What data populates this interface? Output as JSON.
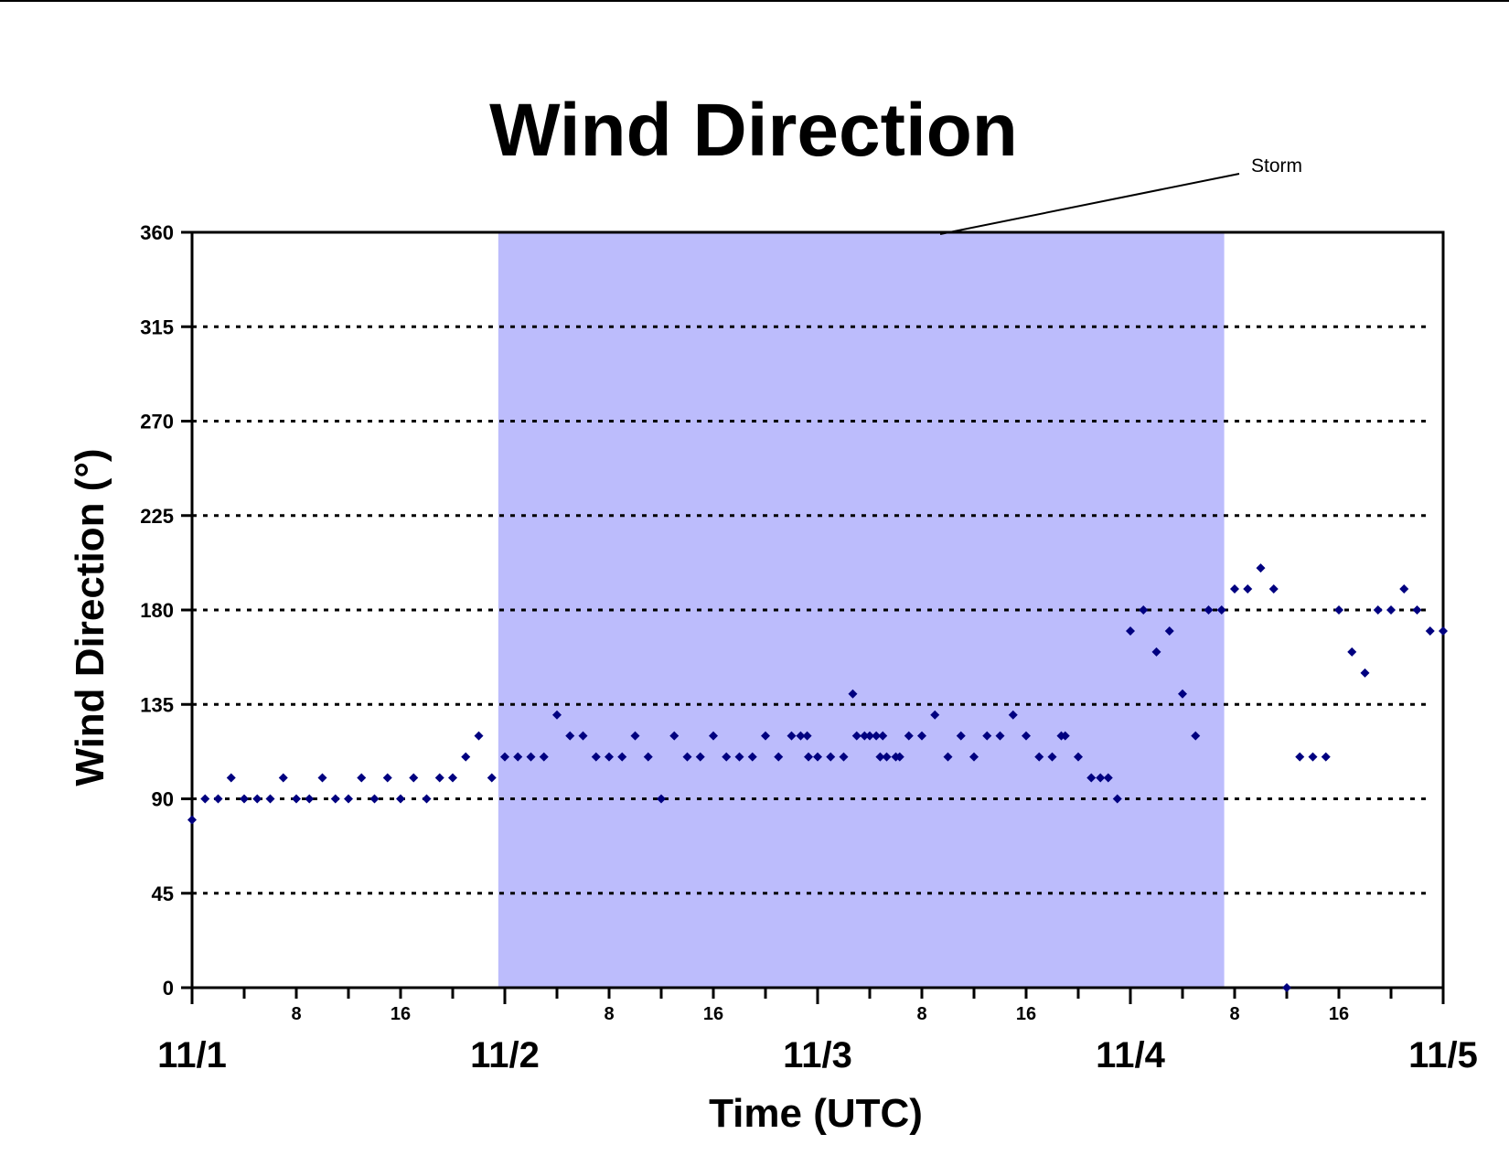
{
  "colors": {
    "shade": "#bcbcfc",
    "marker": "#000080",
    "axis": "#000000",
    "grid": "#000000"
  },
  "chart_data": {
    "type": "scatter",
    "title": "Wind Direction",
    "xlabel": "Time (UTC)",
    "ylabel": "Wind Direction (°)",
    "ylim": [
      0,
      360
    ],
    "yticks": [
      "0",
      "45",
      "90",
      "135",
      "180",
      "225",
      "270",
      "315",
      "360"
    ],
    "ytick_values": [
      0,
      45,
      90,
      135,
      180,
      225,
      270,
      315,
      360
    ],
    "xlim_hours": [
      0,
      96
    ],
    "day_labels": [
      {
        "hour": 0,
        "label": "11/1"
      },
      {
        "hour": 24,
        "label": "11/2"
      },
      {
        "hour": 48,
        "label": "11/3"
      },
      {
        "hour": 72,
        "label": "11/4"
      },
      {
        "hour": 96,
        "label": "11/5"
      }
    ],
    "hour_labels": [
      {
        "hour": 8,
        "label": "8"
      },
      {
        "hour": 16,
        "label": "16"
      },
      {
        "hour": 32,
        "label": "8"
      },
      {
        "hour": 40,
        "label": "16"
      },
      {
        "hour": 56,
        "label": "8"
      },
      {
        "hour": 64,
        "label": "16"
      },
      {
        "hour": 80,
        "label": "8"
      },
      {
        "hour": 88,
        "label": "16"
      }
    ],
    "grid": "horizontal dotted",
    "shaded_region": {
      "label": "Storm",
      "from_hour": 23.5,
      "to_hour": 79.2
    },
    "series": [
      {
        "points": [
          [
            0,
            80
          ],
          [
            1,
            90
          ],
          [
            2,
            90
          ],
          [
            3,
            100
          ],
          [
            4,
            90
          ],
          [
            5,
            90
          ],
          [
            6,
            90
          ],
          [
            7,
            100
          ],
          [
            8,
            90
          ],
          [
            9,
            90
          ],
          [
            10,
            100
          ],
          [
            11,
            90
          ],
          [
            12,
            90
          ],
          [
            13,
            100
          ],
          [
            14,
            90
          ],
          [
            15,
            100
          ],
          [
            16,
            90
          ],
          [
            17,
            100
          ],
          [
            18,
            90
          ],
          [
            19,
            100
          ],
          [
            20,
            100
          ],
          [
            21,
            110
          ],
          [
            22,
            120
          ],
          [
            23,
            100
          ],
          [
            24,
            110
          ],
          [
            25,
            110
          ],
          [
            26,
            110
          ],
          [
            27,
            110
          ],
          [
            28,
            130
          ],
          [
            29,
            120
          ],
          [
            30,
            120
          ],
          [
            31,
            110
          ],
          [
            32,
            110
          ],
          [
            33,
            110
          ],
          [
            34,
            120
          ],
          [
            35,
            110
          ],
          [
            36,
            90
          ],
          [
            37,
            120
          ],
          [
            38,
            110
          ],
          [
            39,
            110
          ],
          [
            40,
            120
          ],
          [
            41,
            110
          ],
          [
            42,
            110
          ],
          [
            43,
            110
          ],
          [
            44,
            120
          ],
          [
            45,
            110
          ],
          [
            46,
            120
          ],
          [
            46.7,
            120
          ],
          [
            47.2,
            120
          ],
          [
            47.3,
            110
          ],
          [
            48,
            110
          ],
          [
            49,
            110
          ],
          [
            50,
            110
          ],
          [
            50.7,
            140
          ],
          [
            51,
            120
          ],
          [
            51.6,
            120
          ],
          [
            52,
            120
          ],
          [
            52.5,
            120
          ],
          [
            52.8,
            110
          ],
          [
            53,
            120
          ],
          [
            53.3,
            110
          ],
          [
            54,
            110
          ],
          [
            54.3,
            110
          ],
          [
            55,
            120
          ],
          [
            56,
            120
          ],
          [
            57,
            130
          ],
          [
            58,
            110
          ],
          [
            59,
            120
          ],
          [
            60,
            110
          ],
          [
            61,
            120
          ],
          [
            62,
            120
          ],
          [
            63,
            130
          ],
          [
            64,
            120
          ],
          [
            65,
            110
          ],
          [
            66,
            110
          ],
          [
            66.7,
            120
          ],
          [
            67,
            120
          ],
          [
            68,
            110
          ],
          [
            69,
            100
          ],
          [
            69.7,
            100
          ],
          [
            70.3,
            100
          ],
          [
            71,
            90
          ],
          [
            72,
            170
          ],
          [
            73,
            180
          ],
          [
            74,
            160
          ],
          [
            75,
            170
          ],
          [
            76,
            140
          ],
          [
            77,
            120
          ],
          [
            78,
            180
          ],
          [
            79,
            180
          ],
          [
            80,
            190
          ],
          [
            81,
            190
          ],
          [
            82,
            200
          ],
          [
            83,
            190
          ],
          [
            84,
            0
          ],
          [
            85,
            110
          ],
          [
            86,
            110
          ],
          [
            87,
            110
          ],
          [
            88,
            180
          ],
          [
            89,
            160
          ],
          [
            90,
            150
          ],
          [
            91,
            180
          ],
          [
            92,
            180
          ],
          [
            93,
            190
          ],
          [
            94,
            180
          ],
          [
            95,
            170
          ],
          [
            96,
            170
          ]
        ]
      }
    ]
  }
}
